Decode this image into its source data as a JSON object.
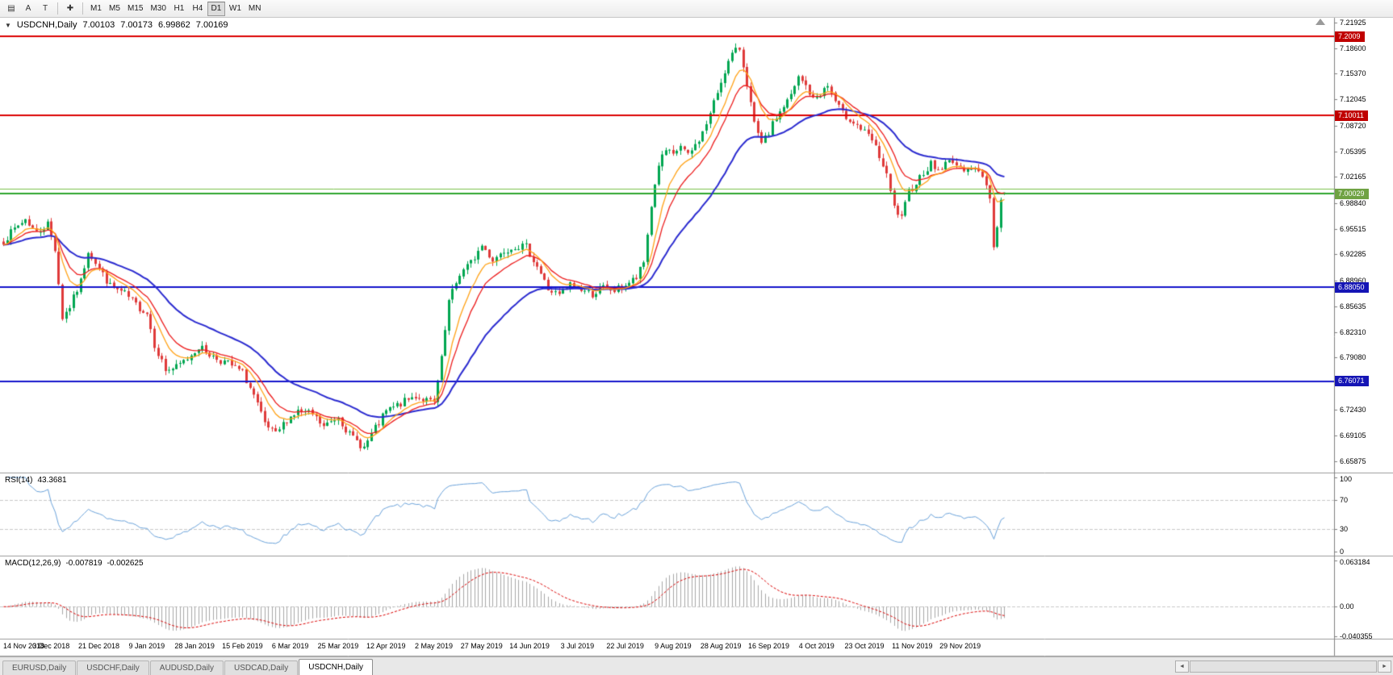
{
  "palette": {
    "up": "#00A651",
    "down": "#DF3A3A",
    "ma_fast": "#FFA216",
    "ma_mid": "#ED1C1C",
    "ma_slow": "#2B2BD0",
    "line_red": "#DC0000",
    "line_green": "#2EA52E",
    "line_lightgreen": "#7CC24B",
    "line_blue": "#1414CC",
    "badge_red": "#C00000",
    "badge_green": "#6FA243",
    "badge_blue": "#1515B5",
    "rsi": "#6BA3DB",
    "macd_hist": "#A8A8A8",
    "macd_signal": "#DC0000",
    "separator": "#9C9C9C",
    "axis_line": "#808080",
    "level_dash": "#C9C9C9",
    "axis_text": "#000000"
  },
  "toolbar": {
    "icons": [
      {
        "name": "chart-list-icon",
        "glyph": "▤"
      },
      {
        "name": "font-a-icon",
        "glyph": "A"
      },
      {
        "name": "text-tool-icon",
        "glyph": "T"
      },
      {
        "name": "crosshair-icon",
        "glyph": "✚"
      }
    ],
    "timeframes": [
      {
        "label": "M1"
      },
      {
        "label": "M5"
      },
      {
        "label": "M15"
      },
      {
        "label": "M30"
      },
      {
        "label": "H1"
      },
      {
        "label": "H4"
      },
      {
        "label": "D1",
        "active": true
      },
      {
        "label": "W1"
      },
      {
        "label": "MN"
      }
    ]
  },
  "chart": {
    "title": {
      "dropdown_glyph": "▼",
      "symbol": "USDCNH,Daily",
      "open": "7.00103",
      "high": "7.00173",
      "low": "6.99862",
      "close": "7.00169"
    }
  },
  "rsi_panel": {
    "name": "RSI(14)",
    "value": "43.3681",
    "ticks": [
      {
        "label": "100",
        "v": 100
      },
      {
        "label": "70",
        "v": 70
      },
      {
        "label": "30",
        "v": 30
      },
      {
        "label": "0",
        "v": 0
      }
    ]
  },
  "macd_panel": {
    "name": "MACD(12,26,9)",
    "main": "-0.007819",
    "signal": "-0.002625",
    "ticks": [
      {
        "label": "0.063184",
        "v": 0.063184
      },
      {
        "label": "0.00",
        "v": 0
      },
      {
        "label": "-0.040355",
        "v": -0.040355
      }
    ]
  },
  "tabs": [
    {
      "label": "EURUSD,Daily"
    },
    {
      "label": "USDCHF,Daily"
    },
    {
      "label": "AUDUSD,Daily"
    },
    {
      "label": "USDCAD,Daily"
    },
    {
      "label": "USDCNH,Daily",
      "active": true
    }
  ],
  "tab_scrollbar": {
    "left_glyph": "◄",
    "right_glyph": "►"
  },
  "chart_data": {
    "type": "candlestick",
    "symbol": "USDCNH",
    "period": "Daily",
    "bars": 273,
    "last_bar": {
      "open": 7.00103,
      "high": 7.00173,
      "low": 6.99862,
      "close": 7.00169
    },
    "price_range": [
      6.645,
      7.225
    ],
    "price_axis_ticks": [
      "7.21925",
      "7.18600",
      "7.15370",
      "7.12045",
      "7.08720",
      "7.05395",
      "7.02165",
      "6.98840",
      "6.95515",
      "6.92285",
      "6.88960",
      "6.85635",
      "6.82310",
      "6.79080",
      "6.75755",
      "6.72430",
      "6.69105",
      "6.65875"
    ],
    "hlines": [
      {
        "price": 7.2009,
        "label": "7.2009",
        "color": "red",
        "width": 2
      },
      {
        "price": 7.10011,
        "label": "7.10011",
        "color": "red",
        "width": 2
      },
      {
        "price": 7.0068,
        "label": null,
        "color": "lightgreen",
        "width": 1
      },
      {
        "price": 7.00029,
        "label": "7.00029",
        "color": "green",
        "width": 2
      },
      {
        "price": 6.8805,
        "label": "6.88050",
        "color": "blue",
        "width": 2
      },
      {
        "price": 6.76071,
        "label": "6.76071",
        "color": "blue",
        "width": 2
      }
    ],
    "moving_averages": [
      {
        "period": 8,
        "method": "ema",
        "color": "ma_fast"
      },
      {
        "period": 13,
        "method": "ema",
        "color": "ma_mid"
      },
      {
        "period": 34,
        "method": "ema",
        "color": "ma_slow"
      }
    ],
    "indicators": [
      {
        "name": "RSI",
        "period": 14,
        "current": 43.3681,
        "range": [
          0,
          100
        ],
        "levels": [
          70,
          30
        ]
      },
      {
        "name": "MACD",
        "fast": 12,
        "slow": 26,
        "signal": 9,
        "current_main": -0.007819,
        "current_signal": -0.002625,
        "axis_min": -0.040355,
        "axis_max": 0.063184
      }
    ],
    "x_labels": [
      "14 Nov 2018",
      "3 Dec 2018",
      "21 Dec 2018",
      "9 Jan 2019",
      "28 Jan 2019",
      "15 Feb 2019",
      "6 Mar 2019",
      "25 Mar 2019",
      "12 Apr 2019",
      "2 May 2019",
      "27 May 2019",
      "14 Jun 2019",
      "3 Jul 2019",
      "22 Jul 2019",
      "9 Aug 2019",
      "28 Aug 2019",
      "16 Sep 2019",
      "4 Oct 2019",
      "23 Oct 2019",
      "11 Nov 2019",
      "29 Nov 2019"
    ],
    "x_label_step_bars": 13,
    "close_anchors": [
      [
        0,
        6.94
      ],
      [
        3,
        6.955
      ],
      [
        6,
        6.968
      ],
      [
        9,
        6.95
      ],
      [
        12,
        6.962
      ],
      [
        14,
        6.93
      ],
      [
        16,
        6.842
      ],
      [
        18,
        6.856
      ],
      [
        21,
        6.888
      ],
      [
        23,
        6.928
      ],
      [
        26,
        6.905
      ],
      [
        29,
        6.882
      ],
      [
        33,
        6.872
      ],
      [
        36,
        6.858
      ],
      [
        39,
        6.848
      ],
      [
        41,
        6.808
      ],
      [
        44,
        6.775
      ],
      [
        47,
        6.778
      ],
      [
        50,
        6.79
      ],
      [
        53,
        6.805
      ],
      [
        57,
        6.792
      ],
      [
        61,
        6.783
      ],
      [
        65,
        6.772
      ],
      [
        68,
        6.742
      ],
      [
        71,
        6.705
      ],
      [
        74,
        6.692
      ],
      [
        77,
        6.712
      ],
      [
        80,
        6.722
      ],
      [
        84,
        6.718
      ],
      [
        87,
        6.702
      ],
      [
        91,
        6.716
      ],
      [
        94,
        6.692
      ],
      [
        98,
        6.676
      ],
      [
        101,
        6.7
      ],
      [
        104,
        6.722
      ],
      [
        108,
        6.732
      ],
      [
        112,
        6.742
      ],
      [
        115,
        6.736
      ],
      [
        117,
        6.732
      ],
      [
        119,
        6.788
      ],
      [
        121,
        6.862
      ],
      [
        124,
        6.898
      ],
      [
        127,
        6.912
      ],
      [
        130,
        6.934
      ],
      [
        133,
        6.916
      ],
      [
        136,
        6.928
      ],
      [
        139,
        6.934
      ],
      [
        142,
        6.932
      ],
      [
        145,
        6.908
      ],
      [
        148,
        6.878
      ],
      [
        151,
        6.87
      ],
      [
        154,
        6.884
      ],
      [
        157,
        6.878
      ],
      [
        160,
        6.872
      ],
      [
        163,
        6.88
      ],
      [
        166,
        6.876
      ],
      [
        169,
        6.884
      ],
      [
        172,
        6.892
      ],
      [
        174,
        6.912
      ],
      [
        176,
        6.985
      ],
      [
        178,
        7.038
      ],
      [
        180,
        7.055
      ],
      [
        182,
        7.048
      ],
      [
        184,
        7.062
      ],
      [
        186,
        7.048
      ],
      [
        188,
        7.062
      ],
      [
        190,
        7.078
      ],
      [
        192,
        7.102
      ],
      [
        194,
        7.13
      ],
      [
        196,
        7.158
      ],
      [
        198,
        7.178
      ],
      [
        200,
        7.186
      ],
      [
        202,
        7.142
      ],
      [
        204,
        7.088
      ],
      [
        206,
        7.062
      ],
      [
        208,
        7.078
      ],
      [
        210,
        7.098
      ],
      [
        212,
        7.112
      ],
      [
        214,
        7.125
      ],
      [
        216,
        7.148
      ],
      [
        218,
        7.138
      ],
      [
        220,
        7.12
      ],
      [
        222,
        7.128
      ],
      [
        224,
        7.138
      ],
      [
        226,
        7.118
      ],
      [
        228,
        7.102
      ],
      [
        230,
        7.096
      ],
      [
        232,
        7.088
      ],
      [
        234,
        7.078
      ],
      [
        236,
        7.068
      ],
      [
        238,
        7.048
      ],
      [
        240,
        7.022
      ],
      [
        242,
        6.982
      ],
      [
        244,
        6.968
      ],
      [
        246,
        7.002
      ],
      [
        248,
        7.015
      ],
      [
        250,
        7.028
      ],
      [
        252,
        7.038
      ],
      [
        254,
        7.03
      ],
      [
        256,
        7.038
      ],
      [
        258,
        7.044
      ],
      [
        260,
        7.03
      ],
      [
        262,
        7.036
      ],
      [
        264,
        7.03
      ],
      [
        266,
        7.024
      ],
      [
        268,
        6.998
      ],
      [
        269,
        6.932
      ],
      [
        270,
        6.958
      ],
      [
        271,
        6.992
      ],
      [
        272,
        7.0017
      ]
    ],
    "noise_seed": 7,
    "noise_amp": 0.005
  }
}
